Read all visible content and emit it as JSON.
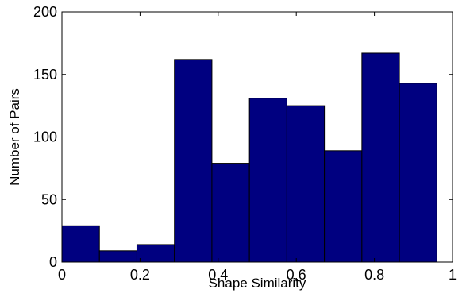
{
  "chart_data": {
    "type": "bar",
    "xlabel": "Shape Similarity",
    "ylabel": "Number of Pairs",
    "xlim": [
      0,
      1
    ],
    "ylim": [
      0,
      200
    ],
    "xticks": [
      0,
      0.2,
      0.4,
      0.6,
      0.8,
      1
    ],
    "xtick_labels": [
      "0",
      "0.2",
      "0.4",
      "0.6",
      "0.8",
      "1"
    ],
    "yticks": [
      0,
      50,
      100,
      150,
      200
    ],
    "ytick_labels": [
      "0",
      "50",
      "100",
      "150",
      "200"
    ],
    "bins": [
      {
        "x0": 0.0,
        "x1": 0.096,
        "value": 29
      },
      {
        "x0": 0.096,
        "x1": 0.192,
        "value": 9
      },
      {
        "x0": 0.192,
        "x1": 0.288,
        "value": 14
      },
      {
        "x0": 0.288,
        "x1": 0.384,
        "value": 162
      },
      {
        "x0": 0.384,
        "x1": 0.48,
        "value": 79
      },
      {
        "x0": 0.48,
        "x1": 0.576,
        "value": 131
      },
      {
        "x0": 0.576,
        "x1": 0.672,
        "value": 125
      },
      {
        "x0": 0.672,
        "x1": 0.768,
        "value": 89
      },
      {
        "x0": 0.768,
        "x1": 0.864,
        "value": 167
      },
      {
        "x0": 0.864,
        "x1": 0.96,
        "value": 143
      }
    ],
    "bar_color": "#000080",
    "grid": false,
    "legend": "none"
  }
}
